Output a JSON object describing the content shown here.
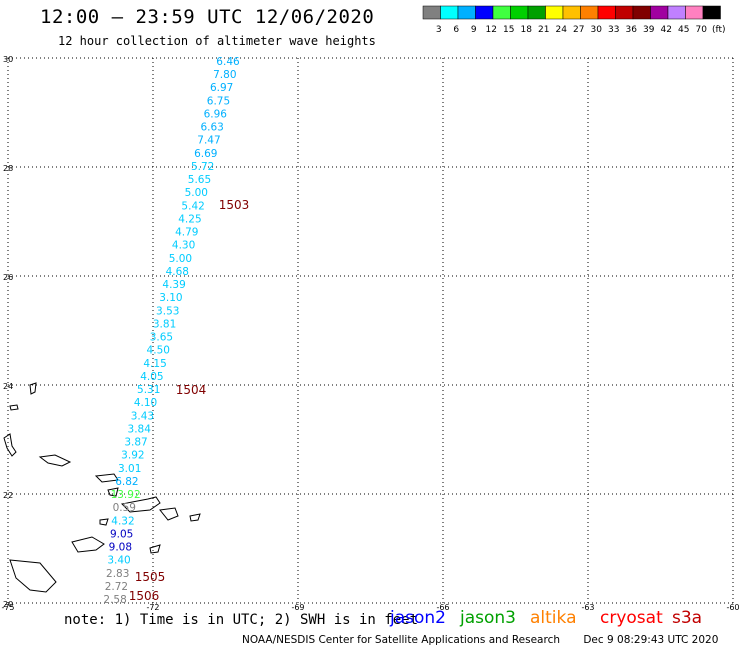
{
  "header": {
    "title": "12:00 – 23:59 UTC 12/06/2020",
    "subtitle": "12 hour collection of altimeter wave heights"
  },
  "color_scale": {
    "labels": [
      "3",
      "6",
      "9",
      "12",
      "15",
      "18",
      "21",
      "24",
      "27",
      "30",
      "33",
      "36",
      "39",
      "42",
      "45",
      "70",
      "(ft)"
    ],
    "colors": [
      "#808080",
      "#00ffff",
      "#00b0ff",
      "#0000ff",
      "#40ff40",
      "#00d000",
      "#00a000",
      "#ffff00",
      "#ffc000",
      "#ff8000",
      "#ff0000",
      "#c00000",
      "#800000",
      "#a000a0",
      "#c080ff",
      "#ff80c0",
      "#000000"
    ]
  },
  "map": {
    "lat_labels": [
      "30",
      "28",
      "26",
      "24",
      "22",
      "20"
    ],
    "lon_labels": [
      "-75",
      "-72",
      "-69",
      "-66",
      "-63",
      "-60"
    ],
    "lat_values": [
      30,
      28,
      26,
      24,
      22,
      20
    ],
    "lon_values": [
      -75,
      -72,
      -69,
      -66,
      -63,
      -60
    ],
    "wave_labels": [
      {
        "text": "6.46",
        "color": "#00b0ff"
      },
      {
        "text": "7.80",
        "color": "#00b0ff"
      },
      {
        "text": "6.97",
        "color": "#00b0ff"
      },
      {
        "text": "6.75",
        "color": "#00b0ff"
      },
      {
        "text": "6.96",
        "color": "#00b0ff"
      },
      {
        "text": "6.63",
        "color": "#00b0ff"
      },
      {
        "text": "7.47",
        "color": "#00b0ff"
      },
      {
        "text": "6.69",
        "color": "#00b0ff"
      },
      {
        "text": "5.72",
        "color": "#00ccff"
      },
      {
        "text": "5.65",
        "color": "#00ccff"
      },
      {
        "text": "5.00",
        "color": "#00ccff"
      },
      {
        "text": "5.42",
        "color": "#00ccff"
      },
      {
        "text": "4.25",
        "color": "#00ccff"
      },
      {
        "text": "4.79",
        "color": "#00ccff"
      },
      {
        "text": "4.30",
        "color": "#00ccff"
      },
      {
        "text": "5.00",
        "color": "#00ccff"
      },
      {
        "text": "4.68",
        "color": "#00ccff"
      },
      {
        "text": "4.39",
        "color": "#00ccff"
      },
      {
        "text": "3.10",
        "color": "#00ccff"
      },
      {
        "text": "3.53",
        "color": "#00ccff"
      },
      {
        "text": "3.81",
        "color": "#00ccff"
      },
      {
        "text": "3.65",
        "color": "#00ccff"
      },
      {
        "text": "4.50",
        "color": "#00ccff"
      },
      {
        "text": "4.15",
        "color": "#00ccff"
      },
      {
        "text": "4.05",
        "color": "#00ccff"
      },
      {
        "text": "5.31",
        "color": "#00ccff"
      },
      {
        "text": "4.10",
        "color": "#00ccff"
      },
      {
        "text": "3.43",
        "color": "#00ccff"
      },
      {
        "text": "3.84",
        "color": "#00ccff"
      },
      {
        "text": "3.87",
        "color": "#00ccff"
      },
      {
        "text": "3.92",
        "color": "#00ccff"
      },
      {
        "text": "3.01",
        "color": "#00ccff"
      },
      {
        "text": "6.82",
        "color": "#00b0ff"
      },
      {
        "text": "13.92",
        "color": "#40ff40"
      },
      {
        "text": "0.59",
        "color": "#808080"
      },
      {
        "text": "4.32",
        "color": "#00ccff"
      },
      {
        "text": "9.05",
        "color": "#0000c0"
      },
      {
        "text": "9.08",
        "color": "#0000c0"
      },
      {
        "text": "3.40",
        "color": "#00ccff"
      },
      {
        "text": "2.83",
        "color": "#808080"
      },
      {
        "text": "2.72",
        "color": "#808080"
      },
      {
        "text": "2.58",
        "color": "#808080"
      }
    ],
    "time_labels": [
      {
        "text": "1503",
        "color": "#800000"
      },
      {
        "text": "1504",
        "color": "#800000"
      },
      {
        "text": "1505",
        "color": "#800000"
      },
      {
        "text": "1506",
        "color": "#800000"
      }
    ]
  },
  "footer": {
    "note": "note: 1) Time is in UTC; 2) SWH is in feet",
    "satellites": [
      {
        "name": "jason2",
        "color": "#0000ff"
      },
      {
        "name": "jason3",
        "color": "#00a000"
      },
      {
        "name": "altika",
        "color": "#ff8000"
      },
      {
        "name": "cryosat",
        "color": "#ff0000"
      },
      {
        "name": "s3a",
        "color": "#c00000"
      }
    ],
    "credit": "NOAA/NESDIS Center for Satellite Applications and Research",
    "timestamp": "Dec  9 08:29:43 UTC 2020"
  }
}
